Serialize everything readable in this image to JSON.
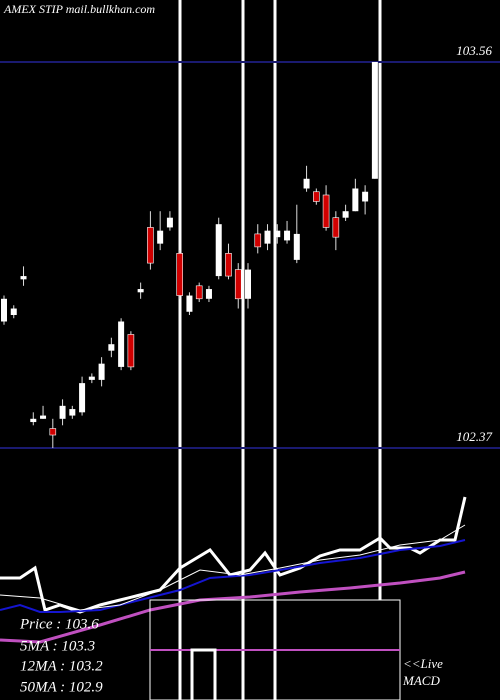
{
  "chart_data": {
    "type": "candlestick",
    "title": "AMEX  STIP mail.bullkhan.com",
    "ylim": [
      102.37,
      103.56
    ],
    "yticks": [
      102.37,
      103.56
    ],
    "open": [
      102.76,
      102.78,
      102.89,
      102.45,
      102.46,
      102.43,
      102.46,
      102.47,
      102.48,
      102.58,
      102.58,
      102.67,
      102.62,
      102.72,
      102.85,
      103.05,
      103.0,
      103.05,
      102.97,
      102.79,
      102.87,
      102.83,
      102.9,
      102.97,
      102.92,
      102.83,
      103.03,
      103.0,
      103.02,
      103.01,
      102.95,
      103.17,
      103.16,
      103.15,
      103.08,
      103.08,
      103.1,
      103.13,
      103.2
    ],
    "high": [
      102.84,
      102.81,
      102.93,
      102.48,
      102.5,
      102.46,
      102.52,
      102.5,
      102.59,
      102.6,
      102.65,
      102.71,
      102.77,
      102.73,
      102.88,
      103.1,
      103.1,
      103.1,
      102.98,
      102.85,
      102.88,
      102.87,
      103.08,
      103.0,
      102.94,
      102.94,
      103.06,
      103.06,
      103.06,
      103.07,
      103.12,
      103.24,
      103.17,
      103.18,
      103.1,
      103.12,
      103.2,
      103.18,
      103.56
    ],
    "low": [
      102.75,
      102.77,
      102.87,
      102.44,
      102.46,
      102.37,
      102.44,
      102.46,
      102.47,
      102.57,
      102.56,
      102.65,
      102.61,
      102.61,
      102.83,
      102.92,
      102.98,
      103.04,
      102.83,
      102.78,
      102.82,
      102.82,
      102.89,
      102.89,
      102.8,
      102.8,
      102.97,
      102.98,
      103.0,
      103.0,
      102.94,
      103.16,
      103.12,
      103.04,
      102.98,
      103.07,
      103.1,
      103.09,
      103.2
    ],
    "close": [
      102.83,
      102.8,
      102.9,
      102.46,
      102.47,
      102.41,
      102.5,
      102.49,
      102.57,
      102.59,
      102.63,
      102.69,
      102.76,
      102.62,
      102.86,
      102.94,
      103.04,
      103.08,
      102.84,
      102.84,
      102.83,
      102.86,
      103.06,
      102.9,
      102.83,
      102.92,
      102.99,
      103.04,
      103.04,
      103.04,
      103.03,
      103.2,
      103.13,
      103.05,
      103.02,
      103.1,
      103.17,
      103.16,
      103.56
    ],
    "indicator_panel": {
      "ylim": [
        0,
        170
      ],
      "series": [
        {
          "color": "#ffffff",
          "width": 3,
          "x": [
            0,
            20,
            35,
            45,
            60,
            80,
            100,
            120,
            140,
            160,
            180,
            210,
            230,
            250,
            265,
            280,
            300,
            320,
            340,
            360,
            380,
            390,
            410,
            420,
            440,
            455,
            465
          ],
          "values": [
            82,
            82,
            92,
            50,
            55,
            48,
            55,
            60,
            65,
            70,
            92,
            110,
            85,
            90,
            107,
            85,
            92,
            104,
            110,
            110,
            122,
            112,
            112,
            107,
            120,
            120,
            163
          ]
        },
        {
          "color": "#1515d0",
          "width": 2,
          "x": [
            0,
            20,
            40,
            60,
            100,
            140,
            180,
            210,
            250,
            280,
            320,
            360,
            400,
            440,
            465
          ],
          "values": [
            50,
            55,
            48,
            48,
            50,
            60,
            70,
            82,
            85,
            90,
            97,
            102,
            110,
            114,
            120
          ]
        },
        {
          "color": "#ffffff",
          "width": 1,
          "x": [
            0,
            40,
            80,
            120,
            160,
            200,
            240,
            280,
            320,
            360,
            400,
            440,
            465
          ],
          "values": [
            65,
            62,
            50,
            55,
            70,
            90,
            85,
            92,
            100,
            105,
            115,
            120,
            135
          ]
        },
        {
          "color": "#c050c0",
          "width": 3,
          "x": [
            0,
            40,
            100,
            150,
            200,
            250,
            300,
            350,
            400,
            440,
            465
          ],
          "values": [
            20,
            18,
            35,
            50,
            60,
            63,
            68,
            72,
            77,
            82,
            88
          ]
        }
      ]
    },
    "legend": [
      "Price   : 103.6",
      "5MA   : 103.3",
      "12MA  : 103.2",
      "50MA  : 102.9"
    ],
    "macd_label": [
      "<<Live",
      "MACD"
    ]
  }
}
